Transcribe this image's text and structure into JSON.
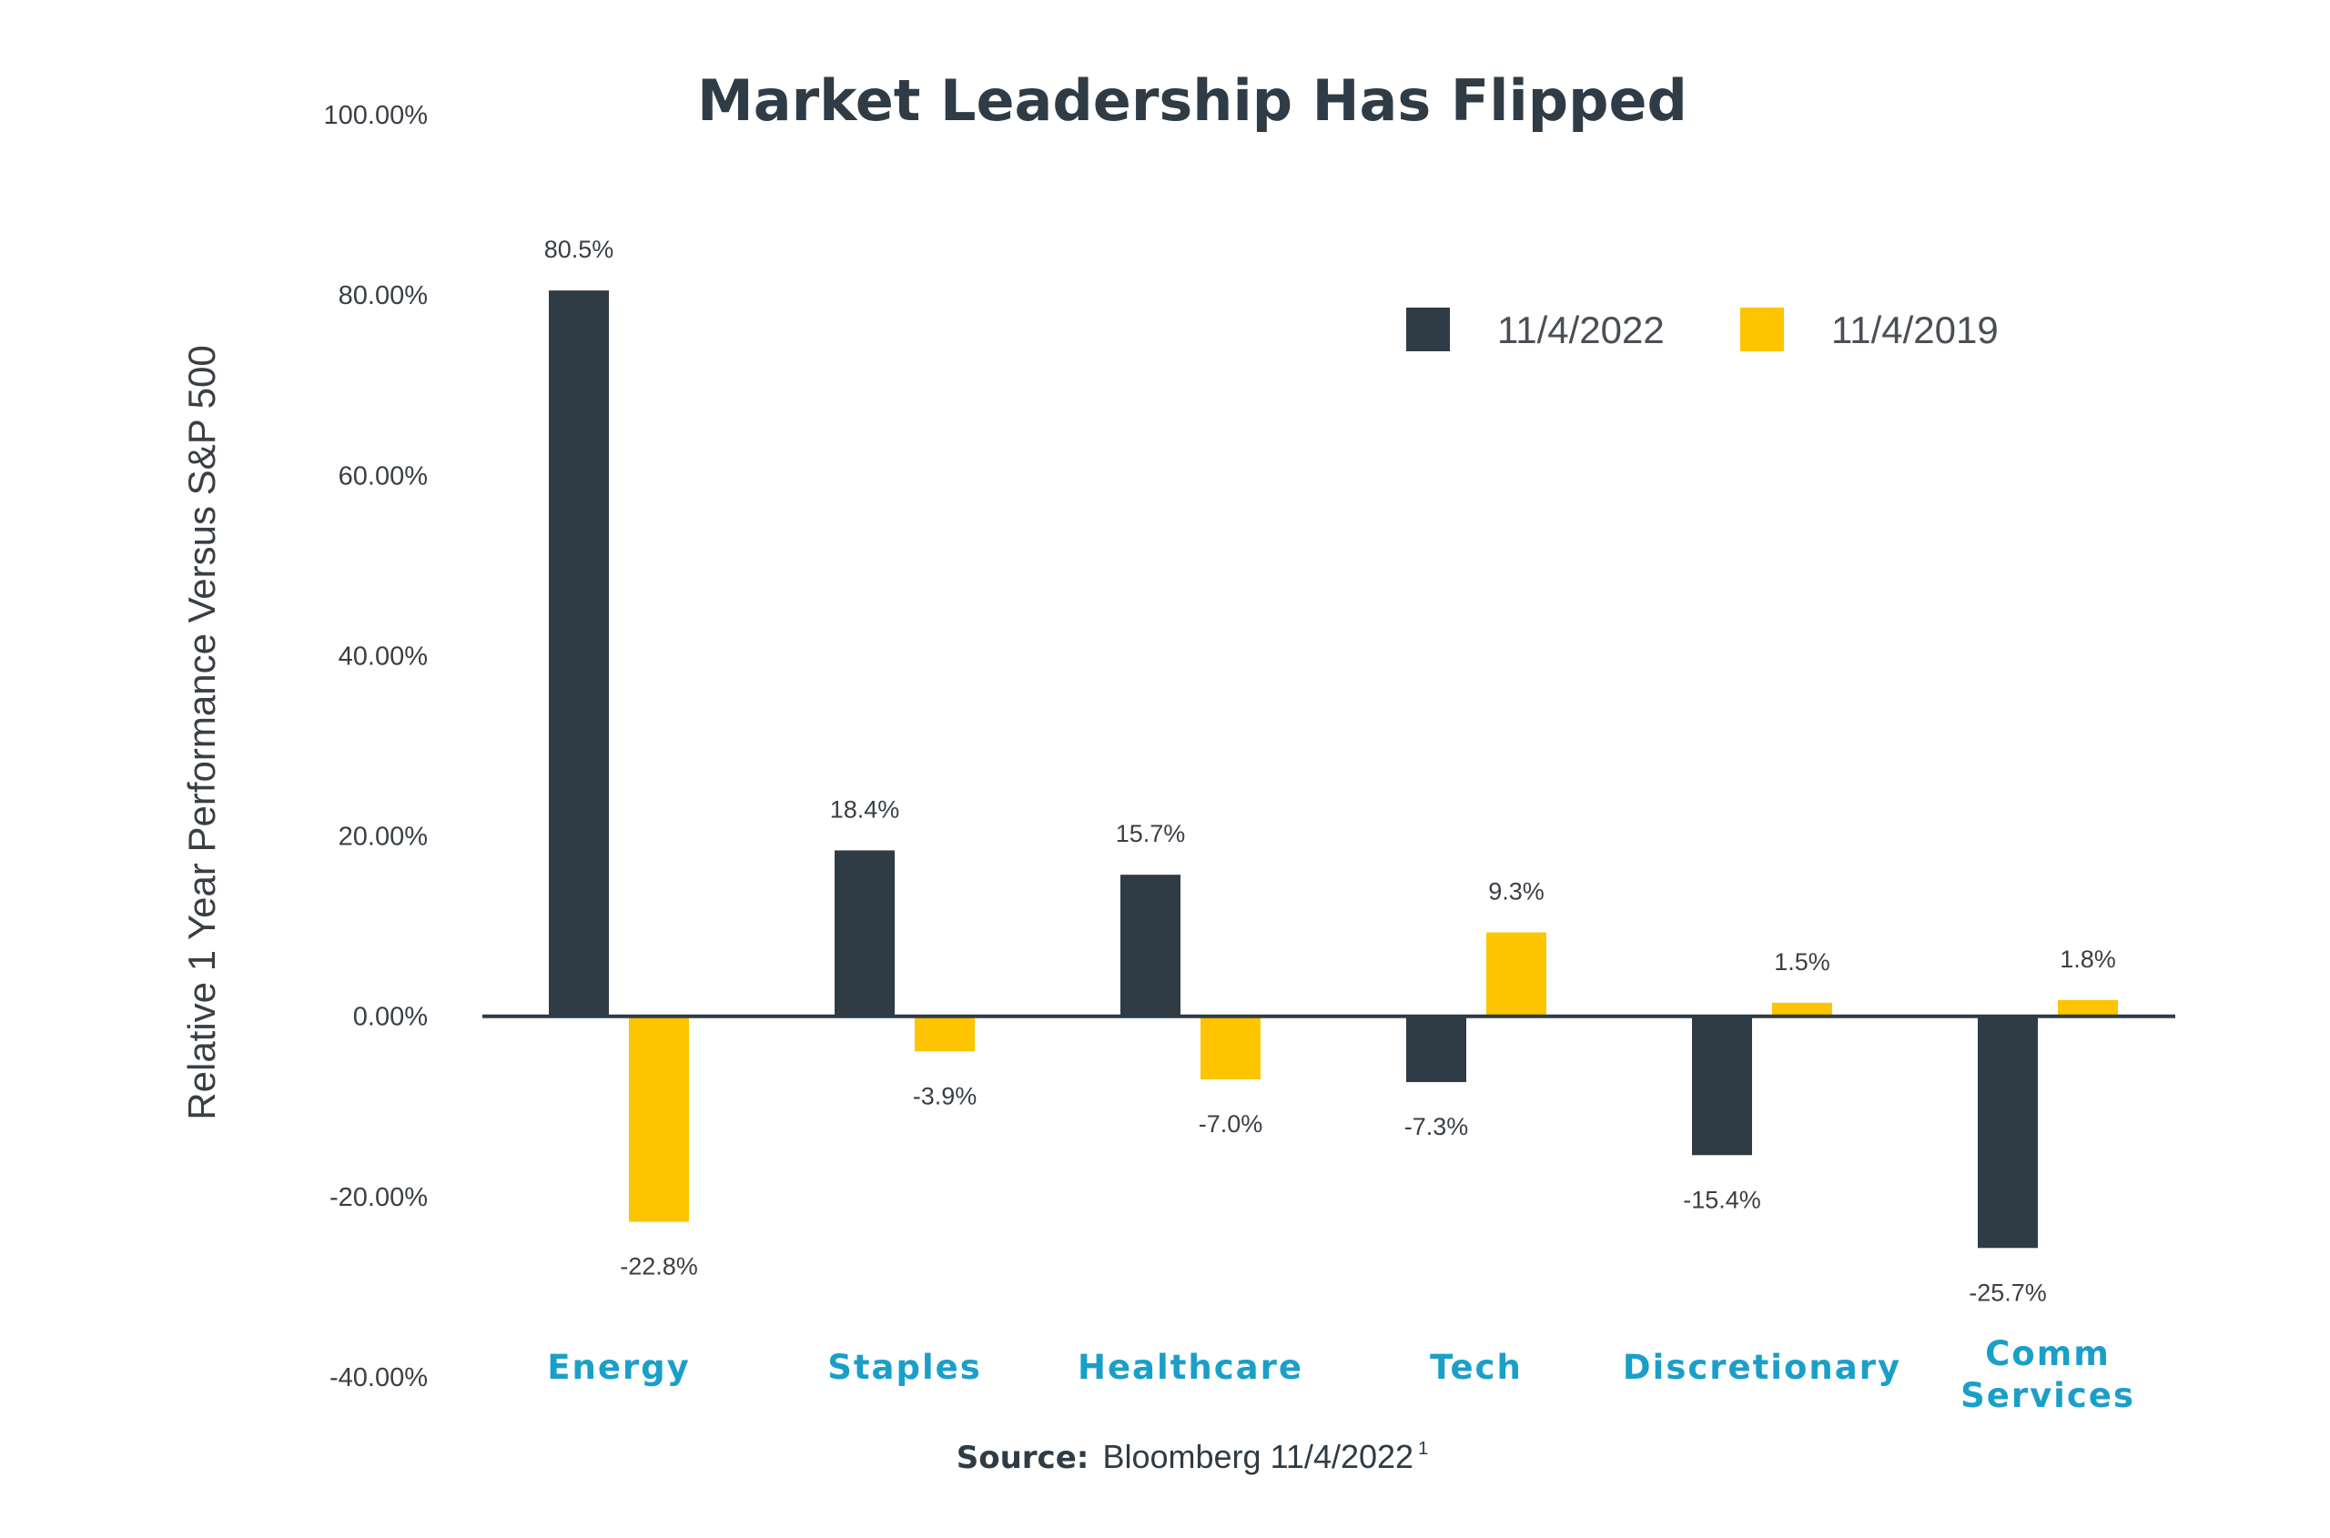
{
  "chart_data": {
    "type": "bar",
    "title": "Market Leadership Has Flipped",
    "xlabel": "",
    "ylabel": "Relative 1 Year Performance Versus S&P 500",
    "ylim": [
      -40,
      100
    ],
    "yticks": [
      -40,
      -20,
      0,
      20,
      40,
      60,
      80,
      100
    ],
    "ytick_labels": [
      "-40.00%",
      "-20.00%",
      "0.00%",
      "20.00%",
      "40.00%",
      "60.00%",
      "80.00%",
      "100.00%"
    ],
    "categories": [
      [
        "Energy"
      ],
      [
        "Staples"
      ],
      [
        "Healthcare"
      ],
      [
        "Tech"
      ],
      [
        "Discretionary"
      ],
      [
        "Comm",
        "Services"
      ]
    ],
    "series": [
      {
        "name": "11/4/2022",
        "color": "#2f3b45",
        "values": [
          80.5,
          18.4,
          15.7,
          -7.3,
          -15.4,
          -25.7
        ],
        "labels": [
          "80.5%",
          "18.4%",
          "15.7%",
          "-7.3%",
          "-15.4%",
          "-25.7%"
        ]
      },
      {
        "name": "11/4/2019",
        "color": "#fdc500",
        "values": [
          -22.8,
          -3.9,
          -7.0,
          9.3,
          1.5,
          1.8
        ],
        "labels": [
          "-22.8%",
          "-3.9%",
          "-7.0%",
          "9.3%",
          "1.5%",
          "1.8%"
        ]
      }
    ],
    "legend_position": "top-right",
    "grid": false
  },
  "source": {
    "label": "Source:",
    "text": "Bloomberg 11/4/2022",
    "footnote": "1"
  },
  "colors": {
    "category_label": "#1a9fc9",
    "axis": "#2f3b45",
    "text": "#3a3f45"
  }
}
